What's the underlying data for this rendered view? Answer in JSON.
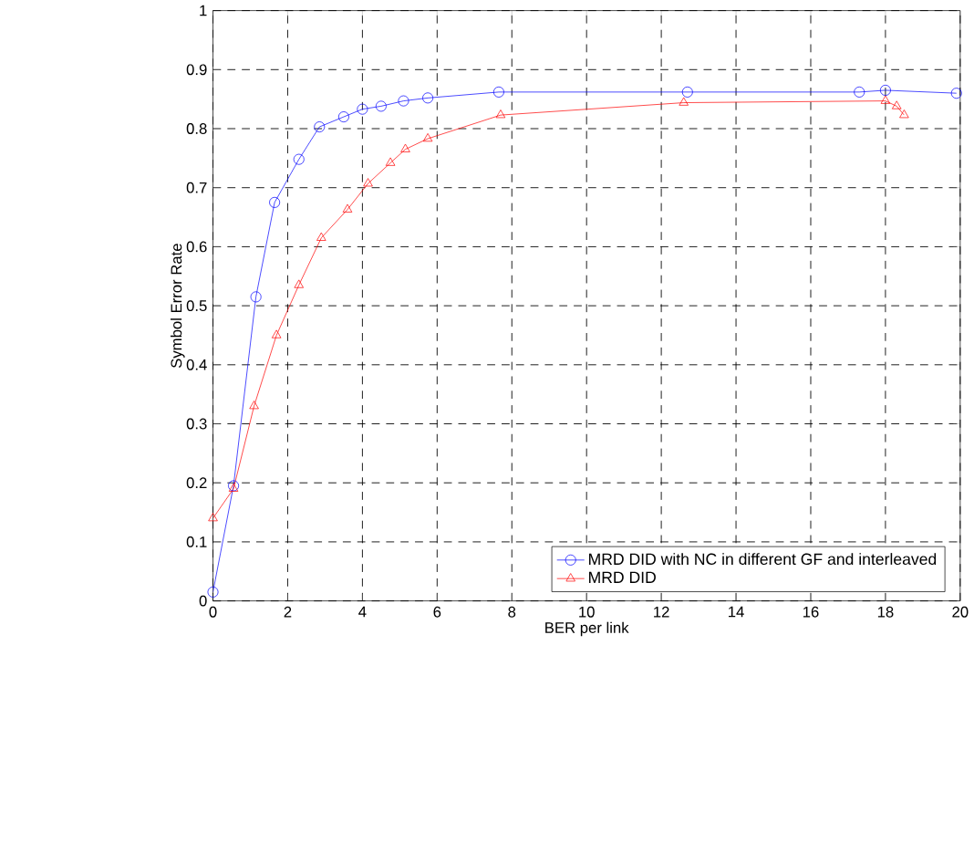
{
  "chart_data": {
    "type": "line",
    "xlabel": "BER per link",
    "ylabel": "Symbol Error Rate",
    "xlim": [
      0,
      20
    ],
    "ylim": [
      0,
      1
    ],
    "xticks": [
      0,
      2,
      4,
      6,
      8,
      10,
      12,
      14,
      16,
      18,
      20
    ],
    "yticks": [
      0,
      0.1,
      0.2,
      0.3,
      0.4,
      0.5,
      0.6,
      0.7,
      0.8,
      0.9,
      1
    ],
    "grid": true,
    "legend": "bottom right",
    "line_style": "solid",
    "series": [
      {
        "name": "MRD DID with NC in different GF and interleaved",
        "color": "#0000ff",
        "marker": "circle",
        "x": [
          0,
          0.55,
          1.15,
          1.65,
          2.3,
          2.85,
          3.5,
          4.0,
          4.5,
          5.1,
          5.75,
          7.65,
          12.7,
          17.3,
          18.0,
          19.9
        ],
        "values": [
          0.015,
          0.195,
          0.515,
          0.675,
          0.748,
          0.803,
          0.82,
          0.833,
          0.838,
          0.847,
          0.852,
          0.862,
          0.862,
          0.862,
          0.865,
          0.86
        ]
      },
      {
        "name": "MRD DID",
        "color": "#ff0000",
        "marker": "triangle",
        "x": [
          0,
          0.55,
          1.1,
          1.7,
          2.3,
          2.9,
          3.6,
          4.15,
          4.75,
          5.15,
          5.75,
          7.7,
          12.6,
          18.0,
          18.3,
          18.5
        ],
        "values": [
          0.14,
          0.19,
          0.33,
          0.45,
          0.535,
          0.615,
          0.663,
          0.707,
          0.742,
          0.765,
          0.783,
          0.823,
          0.844,
          0.847,
          0.838,
          0.823
        ]
      }
    ]
  }
}
